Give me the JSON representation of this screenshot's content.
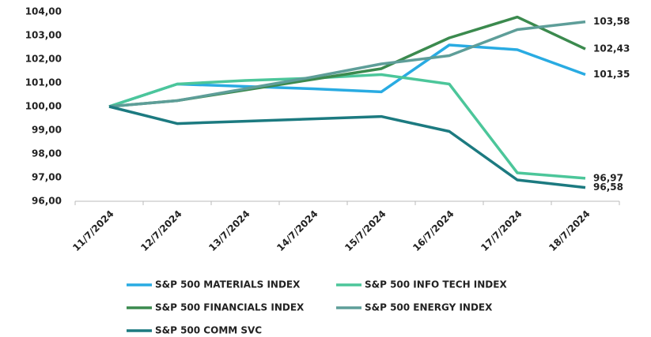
{
  "chart_data": {
    "type": "line",
    "categories": [
      "11/7/2024",
      "12/7/2024",
      "13/7/2024",
      "14/7/2024",
      "15/7/2024",
      "16/7/2024",
      "17/7/2024",
      "18/7/2024"
    ],
    "series": [
      {
        "name": "S&P 500 MATERIALS INDEX",
        "color": "#29abe2",
        "values": [
          100,
          100.95,
          100.85,
          100.75,
          100.62,
          102.6,
          102.4,
          101.35
        ],
        "value_labels": [
          null,
          null,
          null,
          null,
          null,
          null,
          null,
          "101,35"
        ]
      },
      {
        "name": "S&P 500 INFO TECH INDEX",
        "color": "#4cc69a",
        "values": [
          100,
          100.95,
          101.1,
          101.2,
          101.35,
          100.95,
          97.2,
          96.97
        ],
        "value_labels": [
          null,
          null,
          null,
          null,
          null,
          null,
          null,
          "96,97"
        ]
      },
      {
        "name": "S&P 500 FINANCIALS INDEX",
        "color": "#3b8a4e",
        "values": [
          100,
          100.25,
          100.7,
          101.15,
          101.6,
          102.9,
          103.78,
          102.43
        ],
        "value_labels": [
          null,
          null,
          null,
          null,
          null,
          null,
          null,
          "102,43"
        ]
      },
      {
        "name": "S&P 500 ENERGY INDEX",
        "color": "#5e9e99",
        "values": [
          100,
          100.25,
          100.75,
          101.25,
          101.8,
          102.15,
          103.25,
          103.58
        ],
        "value_labels": [
          null,
          null,
          null,
          null,
          null,
          null,
          null,
          "103,58"
        ]
      },
      {
        "name": "S&P 500 COMM SVC",
        "color": "#1c7a80",
        "values": [
          100,
          99.28,
          99.38,
          99.48,
          99.58,
          98.95,
          96.9,
          96.58
        ],
        "value_labels": [
          null,
          null,
          null,
          null,
          null,
          null,
          null,
          "96,58"
        ]
      }
    ],
    "ylim": [
      96,
      104
    ],
    "yticks": [
      {
        "value": 96,
        "label": "96,00"
      },
      {
        "value": 97,
        "label": "97,00"
      },
      {
        "value": 98,
        "label": "98,00"
      },
      {
        "value": 99,
        "label": "99,00"
      },
      {
        "value": 100,
        "label": "100,00"
      },
      {
        "value": 101,
        "label": "101,00"
      },
      {
        "value": 102,
        "label": "102,00"
      },
      {
        "value": 103,
        "label": "103,00"
      },
      {
        "value": 104,
        "label": "104,00"
      }
    ],
    "legend": "bottom"
  }
}
